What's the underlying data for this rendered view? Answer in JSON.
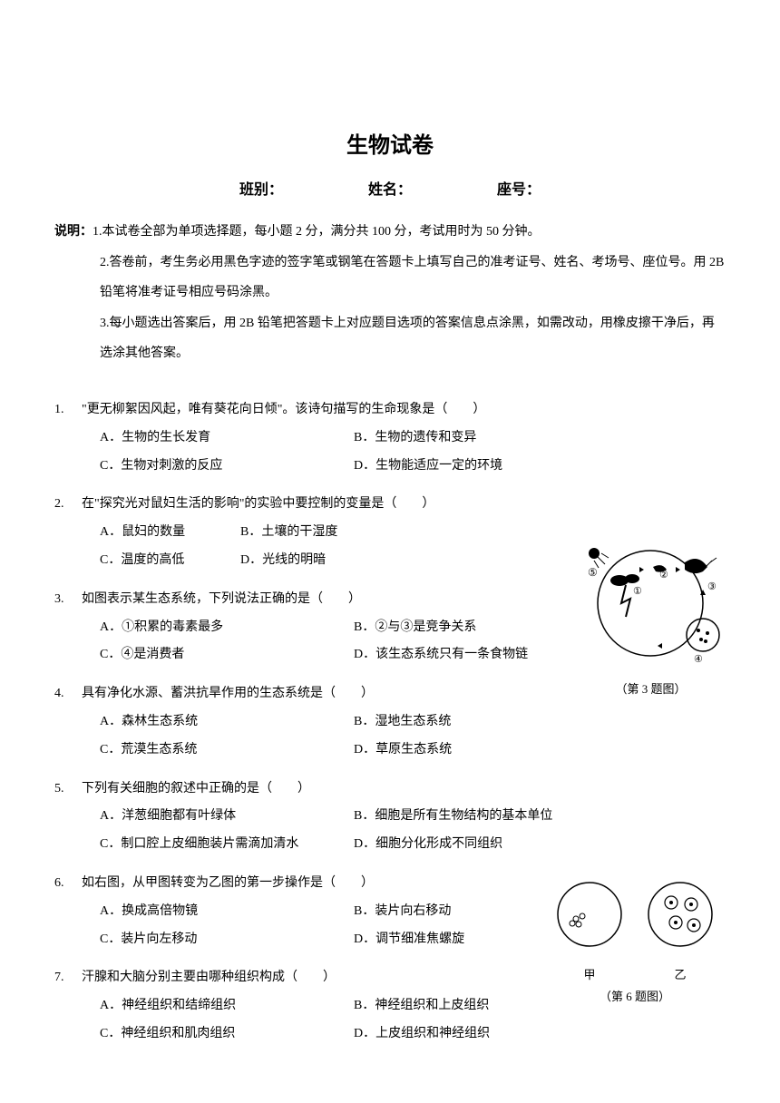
{
  "title": "生物试卷",
  "header": {
    "class_label": "班别：",
    "name_label": "姓名：",
    "seat_label": "座号："
  },
  "instructions": {
    "label": "说明：",
    "items": [
      "1.本试卷全部为单项选择题，每小题 2 分，满分共 100 分，考试用时为 50 分钟。",
      "2.答卷前，考生务必用黑色字迹的签字笔或钢笔在答题卡上填写自己的准考证号、姓名、考场号、座位号。用 2B 铅笔将准考证号相应号码涂黑。",
      "3.每小题选出答案后，用 2B 铅笔把答题卡上对应题目选项的答案信息点涂黑，如需改动，用橡皮擦干净后，再选涂其他答案。"
    ]
  },
  "questions": [
    {
      "num": "1.",
      "stem": "\"更无柳絮因风起，唯有葵花向日倾\"。该诗句描写的生命现象是（　　）",
      "layout": "2col",
      "options": [
        "A．生物的生长发育",
        "B．生物的遗传和变异",
        "C．生物对刺激的反应",
        "D．生物能适应一定的环境"
      ]
    },
    {
      "num": "2.",
      "stem": "在\"探究光对鼠妇生活的影响\"的实验中要控制的变量是（　　）",
      "layout": "4col",
      "options": [
        "A．鼠妇的数量",
        "B．土壤的干湿度",
        "C．温度的高低",
        "D．光线的明暗"
      ]
    },
    {
      "num": "3.",
      "stem": "如图表示某生态系统，下列说法正确的是（　　）",
      "layout": "2col",
      "options": [
        "A．①积累的毒素最多",
        "B．②与③是竞争关系",
        "C．④是消费者",
        "D．该生态系统只有一条食物链"
      ]
    },
    {
      "num": "4.",
      "stem": "具有净化水源、蓄洪抗旱作用的生态系统是（　　）",
      "layout": "2col",
      "options": [
        "A．森林生态系统",
        "B．湿地生态系统",
        "C．荒漠生态系统",
        "D．草原生态系统"
      ]
    },
    {
      "num": "5.",
      "stem": "下列有关细胞的叙述中正确的是（　　）",
      "layout": "2col",
      "options": [
        "A．洋葱细胞都有叶绿体",
        "B．细胞是所有生物结构的基本单位",
        "C．制口腔上皮细胞装片需滴加清水",
        "D．细胞分化形成不同组织"
      ]
    },
    {
      "num": "6.",
      "stem": "如右图，从甲图转变为乙图的第一步操作是（　　）",
      "layout": "2col",
      "options": [
        "A．换成高倍物镜",
        "B．装片向右移动",
        "C．装片向左移动",
        "D．调节细准焦螺旋"
      ]
    },
    {
      "num": "7.",
      "stem": "汗腺和大脑分别主要由哪种组织构成（　　）",
      "layout": "2col",
      "options": [
        "A．神经组织和结缔组织",
        "B．神经组织和上皮组织",
        "C．神经组织和肌肉组织",
        "D．上皮组织和神经组织"
      ]
    }
  ],
  "figures": {
    "fig3": {
      "caption": "（第 3 题图）",
      "labels": [
        "①",
        "②",
        "③",
        "④",
        "⑤"
      ]
    },
    "fig6": {
      "caption": "（第 6 题图）",
      "left_label": "甲",
      "right_label": "乙"
    }
  },
  "colors": {
    "background": "#ffffff",
    "text": "#000000"
  },
  "typography": {
    "body_fontsize": 14,
    "title_fontsize": 24,
    "header_fontsize": 16
  }
}
